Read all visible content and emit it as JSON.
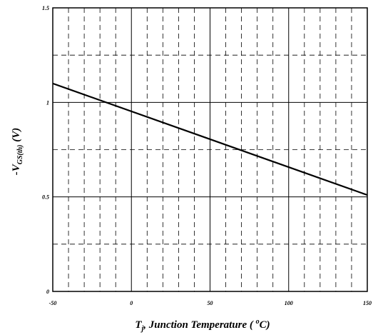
{
  "chart_data": {
    "type": "line",
    "title": "",
    "xlabel": {
      "prefix": "-",
      "symbol": "V",
      "subscript": "GS(th)",
      "unit": "(V)"
    },
    "xaxis_label": {
      "symbol": "T",
      "subscript": "j",
      "text": ", Junction Temperature (",
      "superscript": "o",
      "unit": "C)"
    },
    "xlim": [
      -50,
      150
    ],
    "ylim": [
      0,
      1.5
    ],
    "x_ticks": [
      "-50",
      "0",
      "50",
      "100",
      "150"
    ],
    "y_ticks": [
      "0",
      "0.5",
      "1",
      "1.5"
    ],
    "grid": {
      "major_solid": true,
      "minor_dashed": true,
      "x_minor_step": 10,
      "y_minor_step": 0.25
    },
    "series": [
      {
        "x": [
          -50,
          150
        ],
        "y": [
          1.1,
          0.51
        ]
      }
    ]
  }
}
